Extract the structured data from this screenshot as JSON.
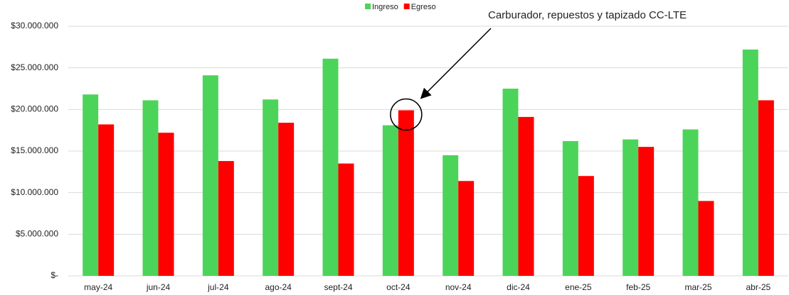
{
  "chart_data": {
    "type": "bar",
    "categories": [
      "may-24",
      "jun-24",
      "jul-24",
      "ago-24",
      "sept-24",
      "oct-24",
      "nov-24",
      "dic-24",
      "ene-25",
      "feb-25",
      "mar-25",
      "abr-25"
    ],
    "series": [
      {
        "name": "Ingreso",
        "color": "#4cd45a",
        "values": [
          21800000,
          21100000,
          24100000,
          21200000,
          26100000,
          18100000,
          14500000,
          22500000,
          16200000,
          16400000,
          17600000,
          27200000
        ]
      },
      {
        "name": "Egreso",
        "color": "#ff0000",
        "values": [
          18200000,
          17200000,
          13800000,
          18400000,
          13500000,
          19900000,
          11400000,
          19100000,
          12000000,
          15500000,
          9000000,
          21100000
        ]
      }
    ],
    "ylim": [
      0,
      30000000
    ],
    "yticks": [
      {
        "value": 0,
        "label": "$-"
      },
      {
        "value": 5000000,
        "label": "$5.000.000"
      },
      {
        "value": 10000000,
        "label": "$10.000.000"
      },
      {
        "value": 15000000,
        "label": "$15.000.000"
      },
      {
        "value": 20000000,
        "label": "$20.000.000"
      },
      {
        "value": 25000000,
        "label": "$25.000.000"
      },
      {
        "value": 30000000,
        "label": "$30.000.000"
      }
    ],
    "grid": true,
    "legend": "top",
    "annotation": {
      "text": "Carburador, repuestos y tapizado CC-LTE",
      "category": 5
    }
  }
}
